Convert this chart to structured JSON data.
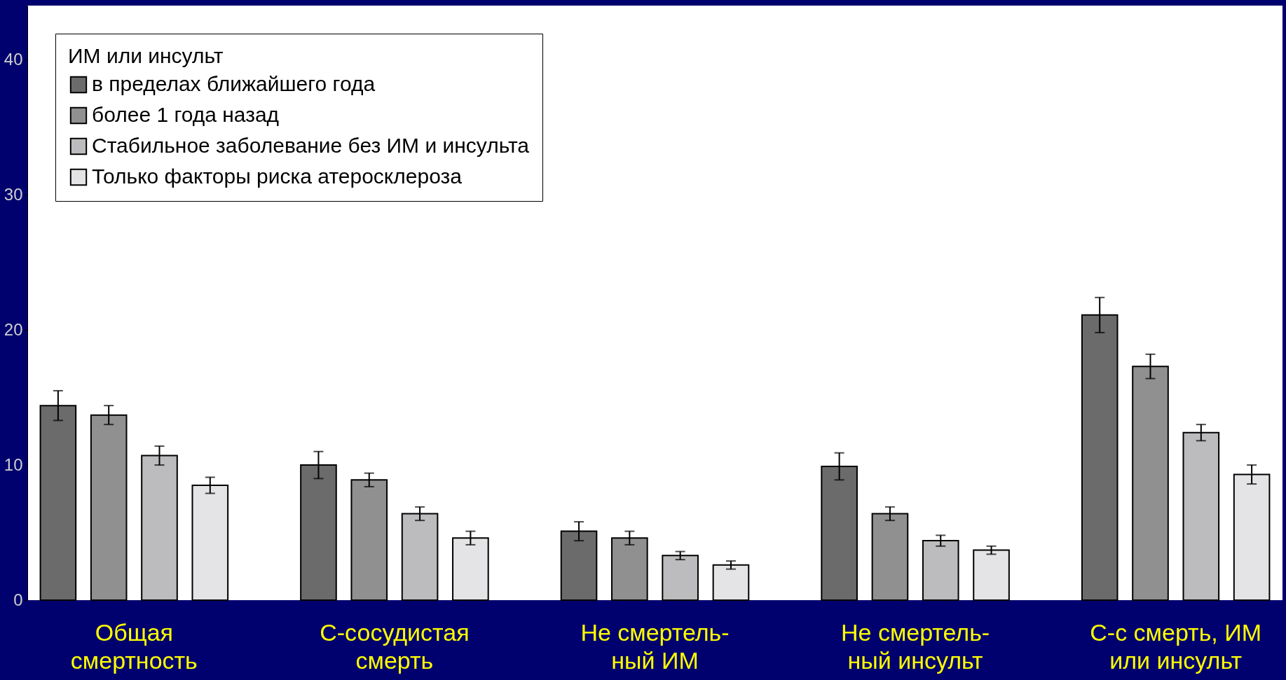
{
  "chart_data": {
    "type": "bar",
    "categories": [
      "Общая\nсмертность",
      "С-сосудистая\nсмерть",
      "Не смертель-\nный ИМ",
      "Не смертель-\nный инсульт",
      "С-с смерть, ИМ\nили инсульт"
    ],
    "legend_title": "ИМ или инсульт",
    "series": [
      {
        "name": "в пределах ближайшего года",
        "color": "#6b6b6b",
        "values": [
          14.4,
          10.0,
          5.1,
          9.9,
          21.1
        ],
        "errors": [
          1.1,
          1.0,
          0.7,
          1.0,
          1.3
        ]
      },
      {
        "name": "более 1 года назад",
        "color": "#909090",
        "values": [
          13.7,
          8.9,
          4.6,
          6.4,
          17.3
        ],
        "errors": [
          0.7,
          0.5,
          0.5,
          0.5,
          0.9
        ]
      },
      {
        "name": "Стабильное заболевание без ИМ и инсульта",
        "color": "#bcbcbe",
        "values": [
          10.7,
          6.4,
          3.3,
          4.4,
          12.4
        ],
        "errors": [
          0.7,
          0.5,
          0.3,
          0.4,
          0.6
        ]
      },
      {
        "name": "Только факторы риска атеросклероза",
        "color": "#e4e4e6",
        "values": [
          8.5,
          4.6,
          2.6,
          3.7,
          9.3
        ],
        "errors": [
          0.6,
          0.5,
          0.3,
          0.3,
          0.7
        ]
      }
    ],
    "ylim": [
      0,
      44
    ],
    "yticks": [
      0,
      10,
      20,
      30,
      40
    ],
    "legend": "top left",
    "grid": false
  }
}
